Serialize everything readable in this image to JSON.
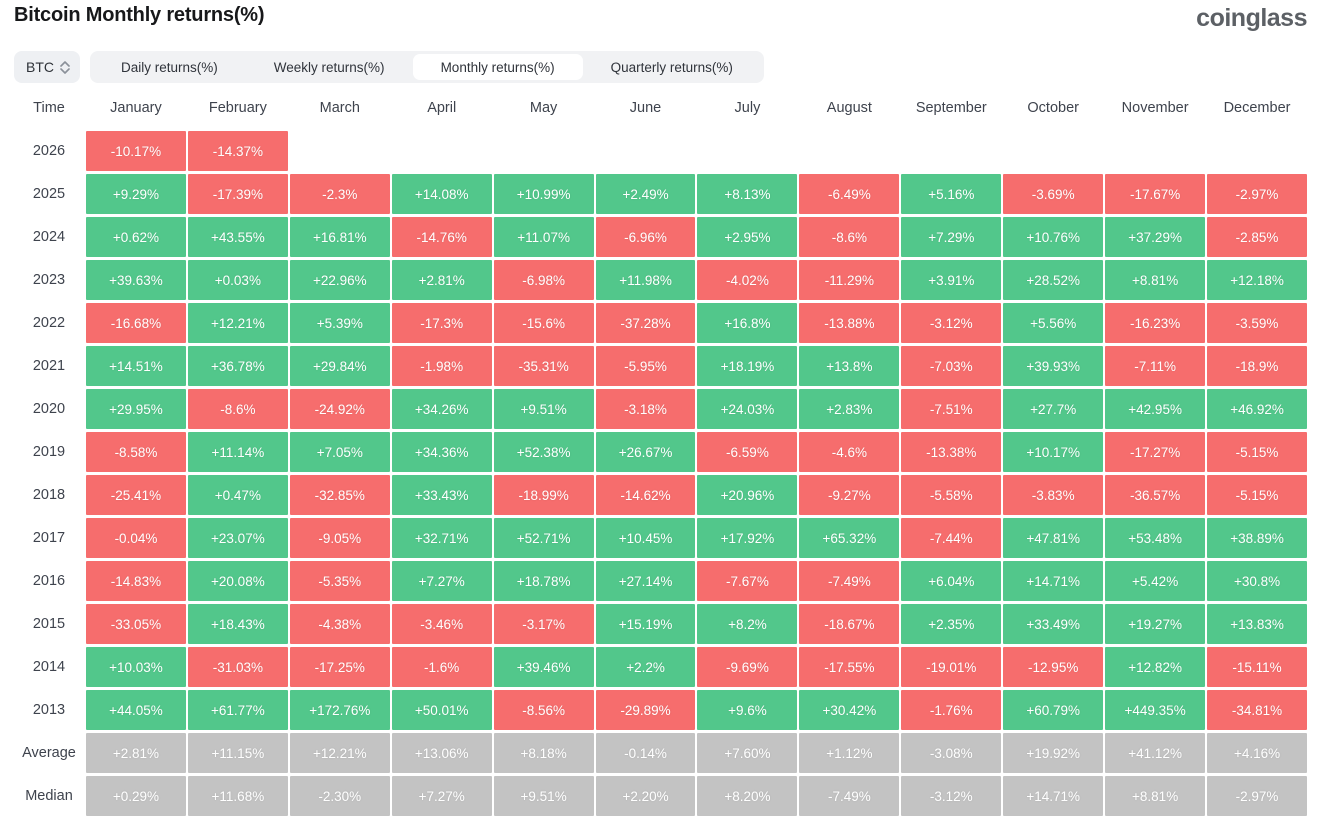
{
  "page": {
    "title": "Bitcoin Monthly returns(%)",
    "logo_text": "coinglass"
  },
  "controls": {
    "symbol": "BTC",
    "tabs": [
      "Daily returns(%)",
      "Weekly returns(%)",
      "Monthly returns(%)",
      "Quarterly returns(%)"
    ],
    "active_tab": "Monthly returns(%)"
  },
  "colors": {
    "positive": "#52c78b",
    "negative": "#f66d6d",
    "summary": "#c3c3c3"
  },
  "table": {
    "time_header": "Time",
    "months": [
      "January",
      "February",
      "March",
      "April",
      "May",
      "June",
      "July",
      "August",
      "September",
      "October",
      "November",
      "December"
    ],
    "rows": [
      {
        "label": "2026",
        "type": "year",
        "values": [
          "-10.17%",
          "-14.37%",
          "",
          "",
          "",
          "",
          "",
          "",
          "",
          "",
          "",
          ""
        ]
      },
      {
        "label": "2025",
        "type": "year",
        "values": [
          "+9.29%",
          "-17.39%",
          "-2.3%",
          "+14.08%",
          "+10.99%",
          "+2.49%",
          "+8.13%",
          "-6.49%",
          "+5.16%",
          "-3.69%",
          "-17.67%",
          "-2.97%"
        ]
      },
      {
        "label": "2024",
        "type": "year",
        "values": [
          "+0.62%",
          "+43.55%",
          "+16.81%",
          "-14.76%",
          "+11.07%",
          "-6.96%",
          "+2.95%",
          "-8.6%",
          "+7.29%",
          "+10.76%",
          "+37.29%",
          "-2.85%"
        ]
      },
      {
        "label": "2023",
        "type": "year",
        "values": [
          "+39.63%",
          "+0.03%",
          "+22.96%",
          "+2.81%",
          "-6.98%",
          "+11.98%",
          "-4.02%",
          "-11.29%",
          "+3.91%",
          "+28.52%",
          "+8.81%",
          "+12.18%"
        ]
      },
      {
        "label": "2022",
        "type": "year",
        "values": [
          "-16.68%",
          "+12.21%",
          "+5.39%",
          "-17.3%",
          "-15.6%",
          "-37.28%",
          "+16.8%",
          "-13.88%",
          "-3.12%",
          "+5.56%",
          "-16.23%",
          "-3.59%"
        ]
      },
      {
        "label": "2021",
        "type": "year",
        "values": [
          "+14.51%",
          "+36.78%",
          "+29.84%",
          "-1.98%",
          "-35.31%",
          "-5.95%",
          "+18.19%",
          "+13.8%",
          "-7.03%",
          "+39.93%",
          "-7.11%",
          "-18.9%"
        ]
      },
      {
        "label": "2020",
        "type": "year",
        "values": [
          "+29.95%",
          "-8.6%",
          "-24.92%",
          "+34.26%",
          "+9.51%",
          "-3.18%",
          "+24.03%",
          "+2.83%",
          "-7.51%",
          "+27.7%",
          "+42.95%",
          "+46.92%"
        ]
      },
      {
        "label": "2019",
        "type": "year",
        "values": [
          "-8.58%",
          "+11.14%",
          "+7.05%",
          "+34.36%",
          "+52.38%",
          "+26.67%",
          "-6.59%",
          "-4.6%",
          "-13.38%",
          "+10.17%",
          "-17.27%",
          "-5.15%"
        ]
      },
      {
        "label": "2018",
        "type": "year",
        "values": [
          "-25.41%",
          "+0.47%",
          "-32.85%",
          "+33.43%",
          "-18.99%",
          "-14.62%",
          "+20.96%",
          "-9.27%",
          "-5.58%",
          "-3.83%",
          "-36.57%",
          "-5.15%"
        ]
      },
      {
        "label": "2017",
        "type": "year",
        "values": [
          "-0.04%",
          "+23.07%",
          "-9.05%",
          "+32.71%",
          "+52.71%",
          "+10.45%",
          "+17.92%",
          "+65.32%",
          "-7.44%",
          "+47.81%",
          "+53.48%",
          "+38.89%"
        ]
      },
      {
        "label": "2016",
        "type": "year",
        "values": [
          "-14.83%",
          "+20.08%",
          "-5.35%",
          "+7.27%",
          "+18.78%",
          "+27.14%",
          "-7.67%",
          "-7.49%",
          "+6.04%",
          "+14.71%",
          "+5.42%",
          "+30.8%"
        ]
      },
      {
        "label": "2015",
        "type": "year",
        "values": [
          "-33.05%",
          "+18.43%",
          "-4.38%",
          "-3.46%",
          "-3.17%",
          "+15.19%",
          "+8.2%",
          "-18.67%",
          "+2.35%",
          "+33.49%",
          "+19.27%",
          "+13.83%"
        ]
      },
      {
        "label": "2014",
        "type": "year",
        "values": [
          "+10.03%",
          "-31.03%",
          "-17.25%",
          "-1.6%",
          "+39.46%",
          "+2.2%",
          "-9.69%",
          "-17.55%",
          "-19.01%",
          "-12.95%",
          "+12.82%",
          "-15.11%"
        ]
      },
      {
        "label": "2013",
        "type": "year",
        "values": [
          "+44.05%",
          "+61.77%",
          "+172.76%",
          "+50.01%",
          "-8.56%",
          "-29.89%",
          "+9.6%",
          "+30.42%",
          "-1.76%",
          "+60.79%",
          "+449.35%",
          "-34.81%"
        ]
      },
      {
        "label": "Average",
        "type": "summary",
        "values": [
          "+2.81%",
          "+11.15%",
          "+12.21%",
          "+13.06%",
          "+8.18%",
          "-0.14%",
          "+7.60%",
          "+1.12%",
          "-3.08%",
          "+19.92%",
          "+41.12%",
          "+4.16%"
        ]
      },
      {
        "label": "Median",
        "type": "summary",
        "values": [
          "+0.29%",
          "+11.68%",
          "-2.30%",
          "+7.27%",
          "+9.51%",
          "+2.20%",
          "+8.20%",
          "-7.49%",
          "-3.12%",
          "+14.71%",
          "+8.81%",
          "-2.97%"
        ]
      }
    ]
  }
}
